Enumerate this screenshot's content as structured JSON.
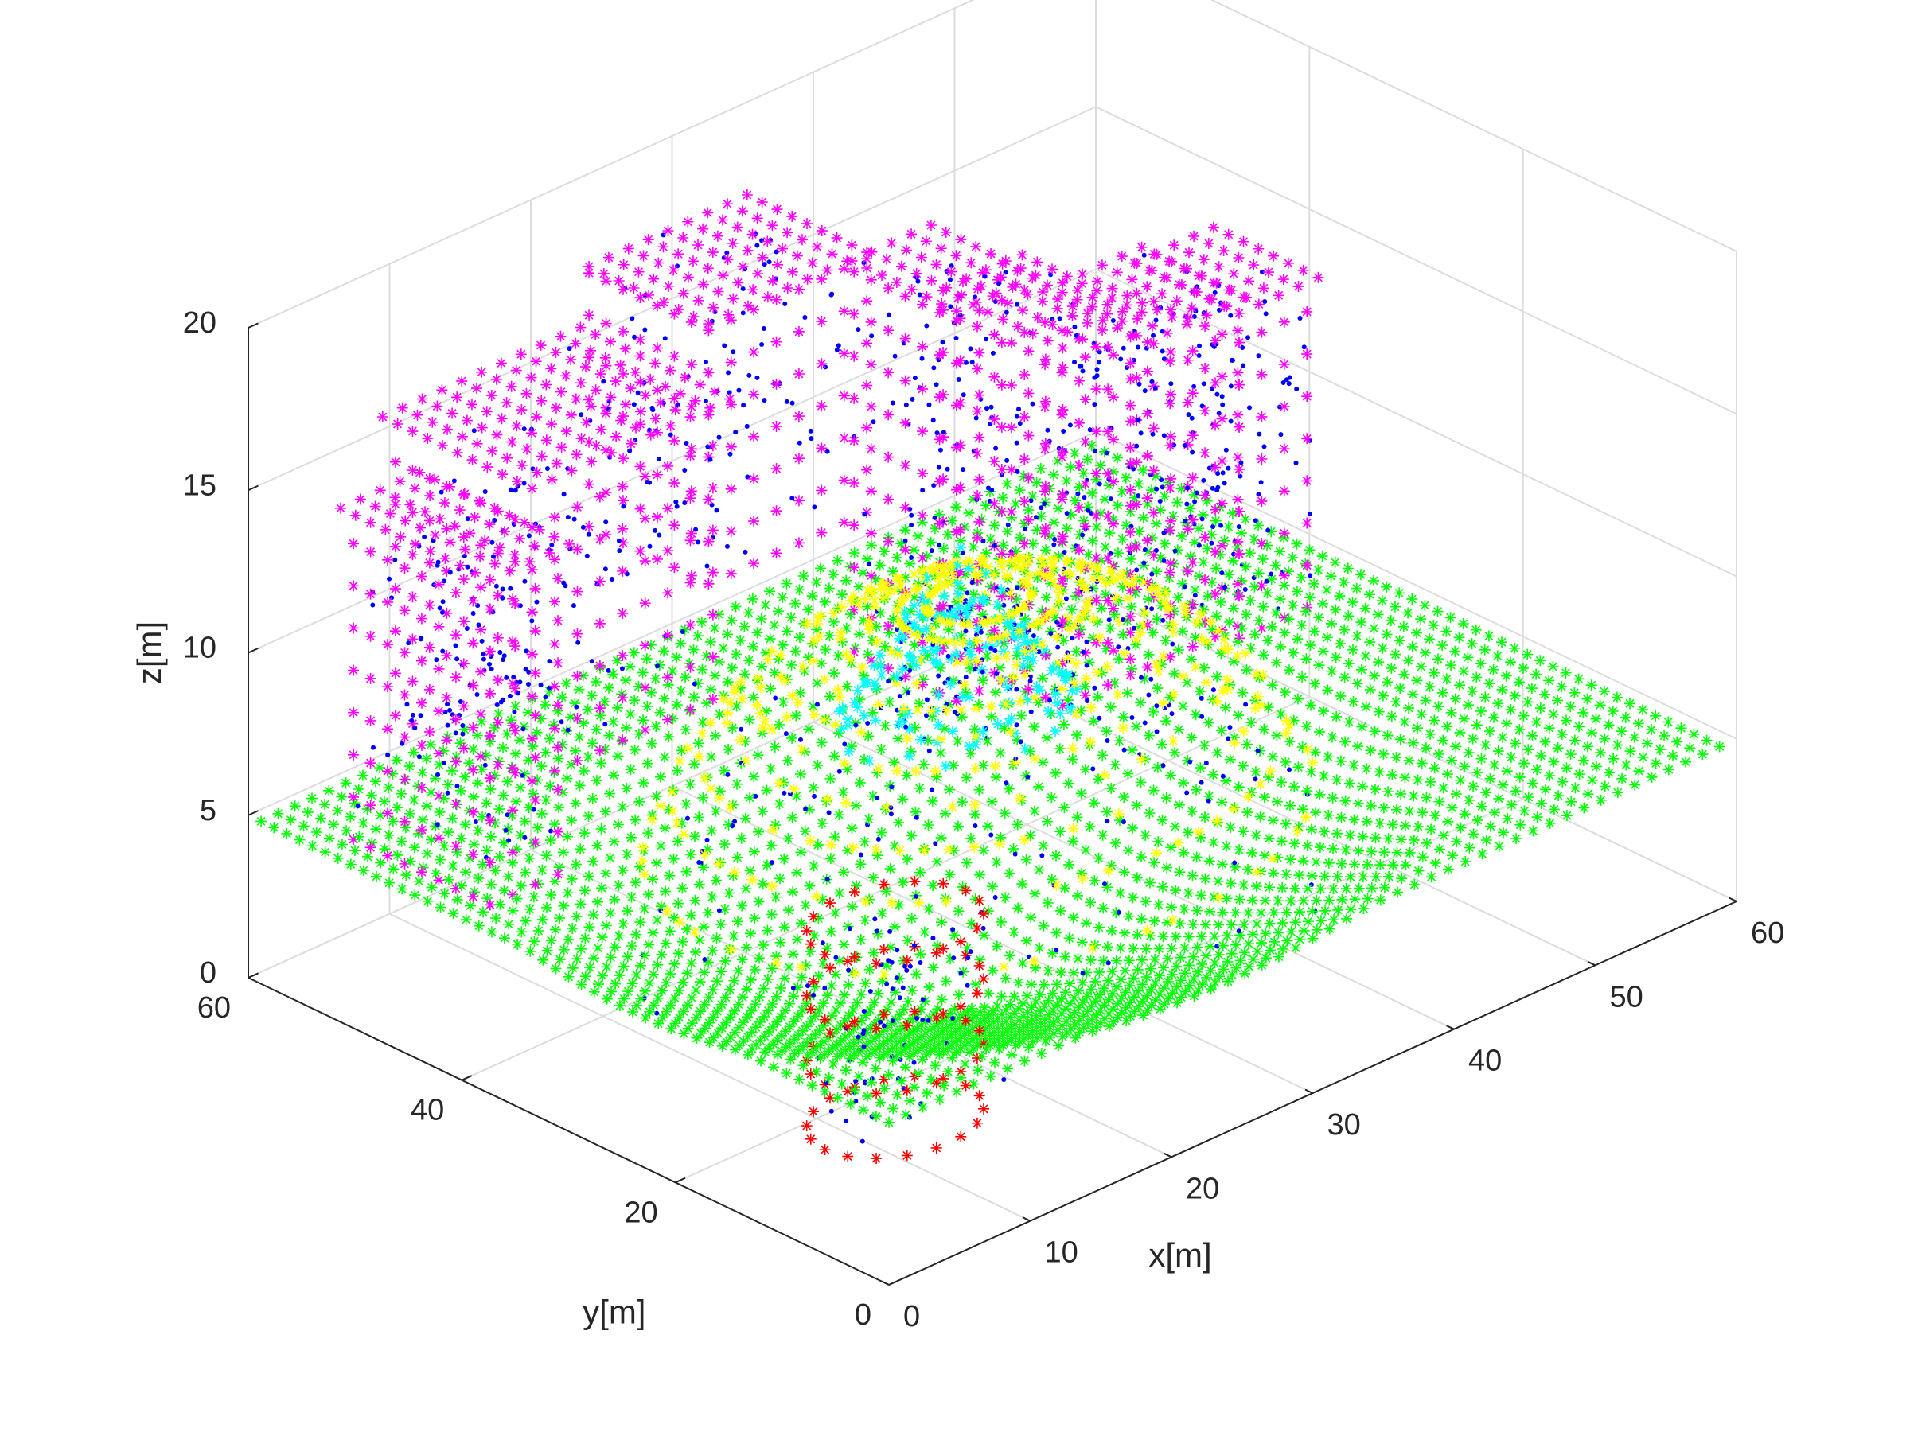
{
  "chart_data": {
    "type": "scatter3d",
    "title": "",
    "xlabel": "x[m]",
    "ylabel": "y[m]",
    "zlabel": "z[m]",
    "xlim": [
      0,
      60
    ],
    "ylim": [
      0,
      60
    ],
    "zlim": [
      0,
      20
    ],
    "xticks": [
      "0",
      "10",
      "20",
      "30",
      "40",
      "50",
      "60"
    ],
    "yticks": [
      "0",
      "20",
      "40",
      "60"
    ],
    "zticks": [
      "0",
      "5",
      "10",
      "15",
      "20"
    ],
    "grid": true,
    "legend": "none",
    "colors": {
      "ground": "#00ff00",
      "building_tops": "#ff00ff",
      "tree_canopy": "#ffff00",
      "tree_crown_top": "#00ffff",
      "small_object": "#ff0000",
      "interior_points": "#0000ff",
      "axes": "#262626",
      "gridlines": "#dcdcdc"
    },
    "series": [
      {
        "marker": "*",
        "color": "#00ff00",
        "shape": "ground",
        "flat_z": 5,
        "center_dip": {
          "x": 24,
          "y": 24,
          "radius": 26,
          "z_bottom": 0
        }
      },
      {
        "marker": "*",
        "color": "#ff00ff",
        "shape": "buildings",
        "boxes": [
          {
            "x": [
              2,
              8
            ],
            "y": [
              40,
              54
            ],
            "z": [
              5,
              15
            ]
          },
          {
            "x": [
              8,
              22
            ],
            "y": [
              44,
              58
            ],
            "z": [
              7,
              16
            ]
          },
          {
            "x": [
              22,
              34
            ],
            "y": [
              46,
              58
            ],
            "z": [
              10,
              18
            ]
          },
          {
            "x": [
              32,
              38
            ],
            "y": [
              36,
              46
            ],
            "z": [
              6,
              18
            ]
          },
          {
            "x": [
              38,
              44
            ],
            "y": [
              34,
              46
            ],
            "z": [
              5,
              16
            ]
          },
          {
            "x": [
              44,
              52
            ],
            "y": [
              34,
              44
            ],
            "z": [
              5,
              15
            ]
          },
          {
            "x": [
              52,
              58
            ],
            "y": [
              36,
              46
            ],
            "z": [
              4,
              14
            ]
          }
        ]
      },
      {
        "marker": "*",
        "color": "#ffff00",
        "shape": "tree_canopy",
        "center": {
          "x": 26,
          "y": 26
        },
        "radius": 20,
        "z_base": 2,
        "z_top": 12
      },
      {
        "marker": "*",
        "color": "#00ffff",
        "shape": "tree_crown_top",
        "center": {
          "x": 26,
          "y": 28
        },
        "radius": 7,
        "z_base": 8,
        "z_top": 14
      },
      {
        "marker": "*",
        "color": "#ff0000",
        "shape": "small_object",
        "center": {
          "x": 8,
          "y": 10
        },
        "radius": 5,
        "z_rings": [
          2,
          4,
          6,
          8
        ]
      },
      {
        "marker": ".",
        "color": "#0000ff",
        "shape": "interior_points"
      }
    ]
  }
}
